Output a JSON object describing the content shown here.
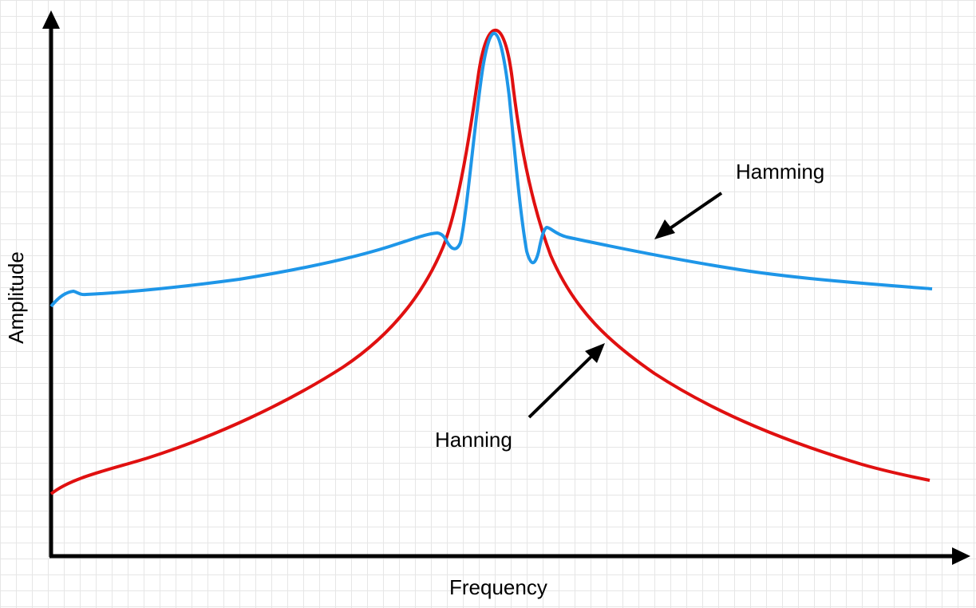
{
  "diagram": {
    "x_axis_label": "Frequency",
    "y_axis_label": "Amplitude",
    "curves": [
      {
        "id": "hamming",
        "label": "Hamming",
        "color": "#1e96e8"
      },
      {
        "id": "hanning",
        "label": "Hanning",
        "color": "#e01010"
      }
    ],
    "axis_color": "#000000",
    "grid": true
  }
}
